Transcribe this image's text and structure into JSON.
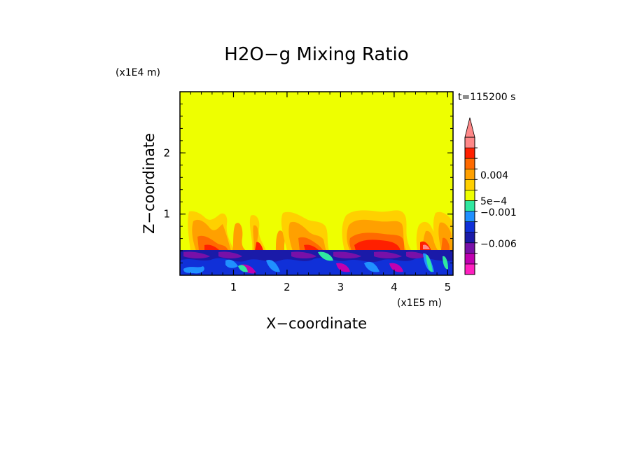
{
  "chart_data": {
    "type": "heatmap",
    "title": "H2O−g Mixing Ratio",
    "time_label": "t=115200 s",
    "xlabel": "X−coordinate",
    "ylabel": "Z−coordinate",
    "x_multiplier": "(x1E5 m)",
    "y_multiplier": "(x1E4 m)",
    "xlim": [
      0,
      5.1
    ],
    "ylim": [
      0,
      3
    ],
    "x_ticks": [
      {
        "value": 1,
        "label": "1"
      },
      {
        "value": 2,
        "label": "2"
      },
      {
        "value": 3,
        "label": "3"
      },
      {
        "value": 4,
        "label": "4"
      },
      {
        "value": 5,
        "label": "5"
      }
    ],
    "y_ticks": [
      {
        "value": 1,
        "label": "1"
      },
      {
        "value": 2,
        "label": "2"
      }
    ],
    "background_color": "#eeff00",
    "colorbar": {
      "levels": [
        {
          "color": "#ff20c0"
        },
        {
          "color": "#c000b0"
        },
        {
          "color": "#7810a8"
        },
        {
          "color": "#1a1aa8"
        },
        {
          "color": "#1030d8"
        },
        {
          "color": "#2090ff"
        },
        {
          "color": "#30e8a0"
        },
        {
          "color": "#eeff00"
        },
        {
          "color": "#ffd000"
        },
        {
          "color": "#ffa000"
        },
        {
          "color": "#ff6a00"
        },
        {
          "color": "#ff2000"
        },
        {
          "color": "#ff8888"
        }
      ],
      "labels": [
        {
          "text": "−0.006",
          "position": 0.225
        },
        {
          "text": "−0.001",
          "position": 0.455
        },
        {
          "text": "5e−4",
          "position": 0.535
        },
        {
          "text": "0.004",
          "position": 0.725
        }
      ]
    },
    "regions": [
      {
        "name": "boundary-layer",
        "color": "#1a1aa8",
        "x": [
          0,
          5.1
        ],
        "z": [
          0,
          0.4
        ]
      },
      {
        "name": "moist-plume-1",
        "x_center": 0.55,
        "z_top": 1.0
      },
      {
        "name": "moist-plume-2",
        "x_center": 1.45,
        "z_top": 0.85
      },
      {
        "name": "moist-plume-3",
        "x_center": 2.35,
        "z_top": 1.0
      },
      {
        "name": "moist-plume-4",
        "x_center": 3.45,
        "z_top": 1.0
      },
      {
        "name": "moist-plume-5",
        "x_center": 4.85,
        "z_top": 1.0
      }
    ]
  }
}
